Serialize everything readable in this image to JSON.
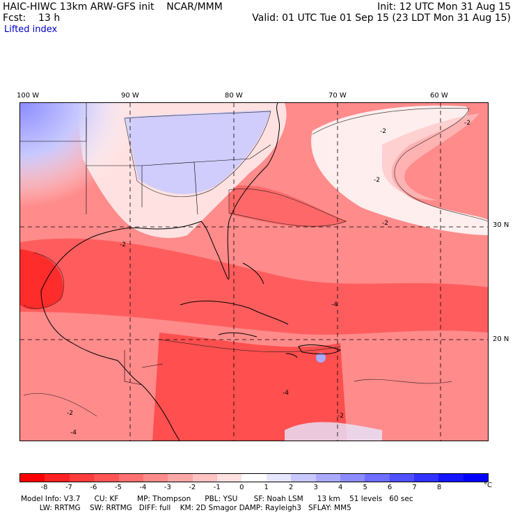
{
  "header": {
    "line1_left": "HAIC-HIWC 13km ARW-GFS init    NCAR/MMM",
    "line1_right": "Init: 12 UTC Mon 31 Aug 15",
    "line2_left": "Fcst:    13 h",
    "line2_right": "Valid: 01 UTC Tue 01 Sep 15 (23 LDT Mon 31 Aug 15)",
    "field_name": "Lifted index"
  },
  "map": {
    "lon_labels": [
      "100 W",
      "90 W",
      "80 W",
      "70 W",
      "60 W"
    ],
    "lat_labels": [
      "30 N",
      "20 N"
    ],
    "contour_labels": [
      "-2",
      "-2",
      "-2",
      "-2",
      "-2",
      "-4",
      "-4",
      "-2",
      "-2",
      "-4"
    ]
  },
  "colorbar": {
    "colors": [
      "#ff0000",
      "#ff2222",
      "#ff3b3b",
      "#ff5555",
      "#ff7070",
      "#ff8b8b",
      "#ffa7a7",
      "#ffc3c3",
      "#ffe1e1",
      "#ffffff",
      "#e6e6ff",
      "#c8c8ff",
      "#aaaaff",
      "#8c8cff",
      "#6e6eff",
      "#5050ff",
      "#3232ff",
      "#1414ff",
      "#0000ff"
    ],
    "tick_labels": [
      "-8",
      "-7",
      "-6",
      "-5",
      "-4",
      "-3",
      "-2",
      "-1",
      "0",
      "1",
      "2",
      "3",
      "4",
      "5",
      "6",
      "7",
      "8"
    ],
    "unit": "°C"
  },
  "model_info": {
    "line1": "Model Info: V3.7      CU: KF        MP: Thompson      PBL: YSU       SF: Noah LSM      13 km    51 levels   60 sec",
    "line2": "        LW: RRTMG    SW: RRTMG   DIFF: full    KM: 2D Smagor DAMP: Rayleigh3   SFLAY: MM5"
  }
}
